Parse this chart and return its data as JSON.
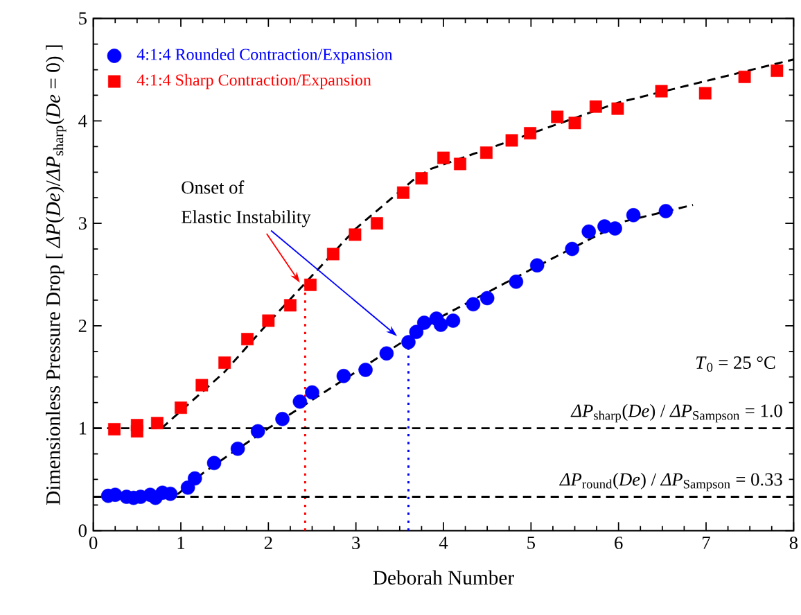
{
  "chart_data": {
    "type": "scatter",
    "xlabel": "Deborah Number",
    "ylabel": "Dimensionless Pressure Drop [ *ΔP*(*De*)/*ΔP*$_{sharp}$(*De* = 0) ]",
    "xlim": [
      0,
      8
    ],
    "ylim": [
      0,
      5
    ],
    "xticks": [
      0,
      1,
      2,
      3,
      4,
      5,
      6,
      7,
      8
    ],
    "yticks": [
      0,
      1,
      2,
      3,
      4,
      5
    ],
    "legend": "top left",
    "series": [
      {
        "name": "4:1:4 Rounded Contraction/Expansion",
        "marker": "circle",
        "color": "#0000ff",
        "x": [
          0.17,
          0.25,
          0.38,
          0.46,
          0.54,
          0.65,
          0.71,
          0.79,
          0.88,
          1.08,
          1.16,
          1.38,
          1.65,
          1.88,
          2.16,
          2.36,
          2.5,
          2.86,
          3.11,
          3.35,
          3.6,
          3.69,
          3.78,
          3.92,
          3.97,
          4.11,
          4.34,
          4.5,
          4.83,
          5.07,
          5.47,
          5.66,
          5.84,
          5.96,
          6.17,
          6.54
        ],
        "values": [
          0.34,
          0.35,
          0.33,
          0.32,
          0.33,
          0.35,
          0.32,
          0.37,
          0.36,
          0.42,
          0.51,
          0.66,
          0.8,
          0.97,
          1.09,
          1.26,
          1.35,
          1.51,
          1.57,
          1.73,
          1.84,
          1.94,
          2.03,
          2.07,
          2.01,
          2.05,
          2.21,
          2.27,
          2.43,
          2.59,
          2.75,
          2.92,
          2.97,
          2.95,
          3.08,
          3.12
        ]
      },
      {
        "name": "4:1:4 Sharp Contraction/Expansion",
        "marker": "square",
        "color": "#ff0000",
        "x": [
          0.24,
          0.5,
          0.5,
          0.73,
          1.0,
          1.24,
          1.5,
          1.76,
          2.0,
          2.25,
          2.48,
          2.74,
          2.99,
          3.24,
          3.54,
          3.75,
          4.0,
          4.19,
          4.49,
          4.78,
          4.99,
          5.3,
          5.5,
          5.74,
          5.99,
          6.49,
          6.99,
          7.44,
          7.81
        ],
        "values": [
          0.99,
          1.03,
          0.97,
          1.05,
          1.2,
          1.42,
          1.64,
          1.87,
          2.05,
          2.2,
          2.4,
          2.7,
          2.89,
          3.0,
          3.3,
          3.44,
          3.64,
          3.58,
          3.69,
          3.81,
          3.88,
          4.04,
          3.98,
          4.14,
          4.12,
          4.29,
          4.27,
          4.43,
          4.49
        ]
      },
      {
        "type": "line",
        "line_style": "dashed",
        "color": "#000000",
        "x": [
          0.15,
          0.97,
          1.25,
          1.5,
          2.0,
          3.0,
          4.0,
          5.0,
          6.07,
          6.85
        ],
        "values": [
          0.33,
          0.36,
          0.56,
          0.71,
          1.0,
          1.55,
          2.1,
          2.55,
          3.02,
          3.18
        ]
      },
      {
        "type": "line",
        "line_style": "dashed",
        "color": "#000000",
        "x": [
          0.78,
          1.5,
          2.0,
          3.0,
          3.65,
          3.85,
          4.35,
          6.0,
          8.0
        ],
        "values": [
          1.0,
          1.55,
          2.03,
          2.95,
          3.42,
          3.53,
          3.68,
          4.18,
          4.6
        ]
      },
      {
        "type": "line",
        "line_style": "dotted",
        "color": "#ff0000",
        "x": [
          2.42,
          2.42
        ],
        "values": [
          0,
          2.4
        ]
      },
      {
        "type": "line",
        "line_style": "dotted",
        "color": "#0000ff",
        "x": [
          3.6,
          3.6
        ],
        "values": [
          0,
          1.84
        ]
      }
    ],
    "ref_lines": [
      {
        "axis": "y",
        "value": 1.0,
        "label": "*ΔP*$_{sharp}$(*De*) / *ΔP*$_{Sampson}$ = 1.0",
        "color": "#000000",
        "line_style": "dashed"
      },
      {
        "axis": "y",
        "value": 0.33,
        "label": "*ΔP*$_{round}$(*De*) / *ΔP*$_{Sampson}$ = 0.33",
        "color": "#000000",
        "line_style": "dashed"
      }
    ],
    "annotations": [
      "Onset of",
      "Elastic Instability",
      "*T*$_{0}$ = 25 °C"
    ]
  }
}
